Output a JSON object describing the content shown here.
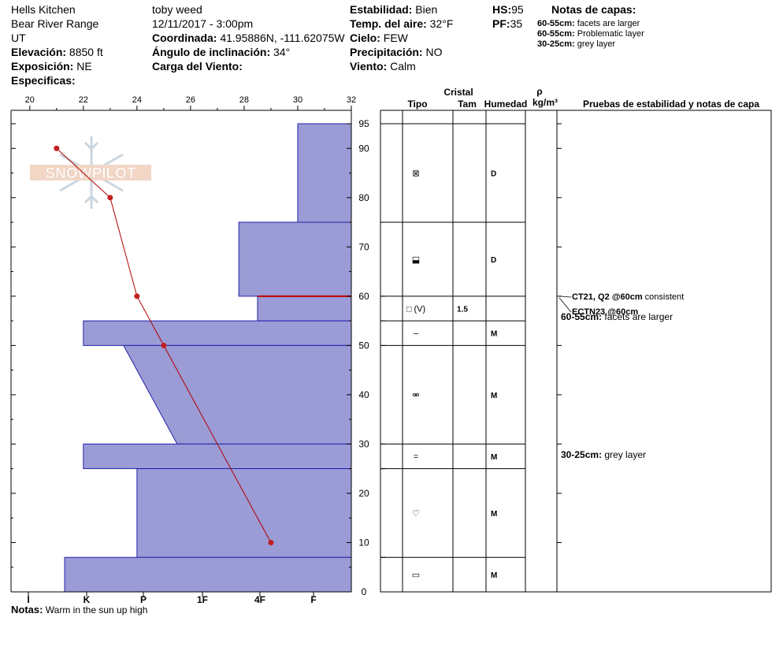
{
  "header": {
    "location": "Hells Kitchen",
    "range": "Bear River Range",
    "state": "UT",
    "elevation_label": "Elevación:",
    "elevation_value": "8850 ft",
    "aspect_label": "Exposición:",
    "aspect_value": "NE",
    "specifics_label": "Especificas:",
    "observer": "toby weed",
    "datetime": "12/11/2017 - 3:00pm",
    "coord_label": "Coordinada:",
    "coord_value": "41.95886N, -111.62075W",
    "incline_label": "Ángulo de inclinación:",
    "incline_value": "34°",
    "wind_load_label": "Carga del Viento:",
    "stability_label": "Estabilidad:",
    "stability_value": "Bien",
    "air_temp_label": "Temp. del aire:",
    "air_temp_value": "32°F",
    "sky_label": "Cielo:",
    "sky_value": "FEW",
    "precip_label": "Precipitación:",
    "precip_value": "NO",
    "wind_label": "Viento:",
    "wind_value": "Calm",
    "hs_label": "HS:",
    "hs_value": "95",
    "pf_label": "PF:",
    "pf_value": "35",
    "layer_notes_title": "Notas de capas:",
    "layer_notes": [
      {
        "range": "60-55cm:",
        "text": "facets are larger"
      },
      {
        "range": "60-55cm:",
        "text": "Problematic layer"
      },
      {
        "range": "30-25cm:",
        "text": "grey layer"
      }
    ]
  },
  "logo_text": "SNOWPILOT",
  "notes_label": "Notas:",
  "notes_value": "Warm in the sun up high",
  "table_headers": {
    "cristal": "Cristal",
    "tipo": "Tipo",
    "tam": "Tam",
    "humedad": "Humedad",
    "rho": "ρ",
    "density": "kg/m³",
    "tests": "Pruebas de estabilidad y notas de capa"
  },
  "chart_data": {
    "type": "snow-profile",
    "depth_ticks": [
      0,
      10,
      20,
      30,
      40,
      50,
      60,
      70,
      80,
      90,
      95
    ],
    "depth_range": [
      0,
      95
    ],
    "temp_ticks": [
      20,
      22,
      24,
      26,
      28,
      30,
      32
    ],
    "temp_range": [
      20,
      32
    ],
    "hardness_labels": [
      "I",
      "K",
      "P",
      "1F",
      "4F",
      "F"
    ],
    "temperature_profile": [
      {
        "depth": 90,
        "temp": 21
      },
      {
        "depth": 80,
        "temp": 23
      },
      {
        "depth": 60,
        "temp": 24
      },
      {
        "depth": 50,
        "temp": 25
      },
      {
        "depth": 10,
        "temp": 29
      }
    ],
    "hardness_layers": [
      {
        "top": 95,
        "bottom": 75,
        "temp_left": 30
      },
      {
        "top": 75,
        "bottom": 60,
        "temp_left": 27.8
      },
      {
        "top": 60,
        "bottom": 55,
        "temp_left": 28.5
      },
      {
        "top": 55,
        "bottom": 50,
        "temp_left": 22
      },
      {
        "top": 50,
        "bottom": 30,
        "temp_left_top": 23.5,
        "temp_left_bottom": 25.5
      },
      {
        "top": 30,
        "bottom": 25,
        "temp_left": 22
      },
      {
        "top": 25,
        "bottom": 7,
        "temp_left": 24
      },
      {
        "top": 7,
        "bottom": 0,
        "temp_left": 21.3
      }
    ],
    "red_line_depth": 60,
    "layers": [
      {
        "top": 95,
        "bottom": 75,
        "type_icon": "⊠",
        "size": "",
        "moisture": "D"
      },
      {
        "top": 75,
        "bottom": 60,
        "type_icon": "⬓",
        "size": "",
        "moisture": "D"
      },
      {
        "top": 60,
        "bottom": 55,
        "type_icon": "□ (V)",
        "size": "1.5",
        "moisture": ""
      },
      {
        "top": 55,
        "bottom": 50,
        "type_icon": "–",
        "size": "",
        "moisture": "M"
      },
      {
        "top": 50,
        "bottom": 30,
        "type_icon": "⚮",
        "size": "",
        "moisture": "M"
      },
      {
        "top": 30,
        "bottom": 25,
        "type_icon": "=",
        "size": "",
        "moisture": "M"
      },
      {
        "top": 25,
        "bottom": 7,
        "type_icon": "♡",
        "size": "",
        "moisture": "M"
      },
      {
        "top": 7,
        "bottom": 0,
        "type_icon": "▭",
        "size": "",
        "moisture": "M"
      }
    ],
    "stability_tests": [
      {
        "code": "CT21, Q2 @60cm",
        "text": "consistent"
      },
      {
        "code": "ECTN23 @60cm",
        "text": ""
      }
    ],
    "layer_annotations": [
      {
        "depth_label": "60-55cm:",
        "text": "facets are larger",
        "depth": 55
      },
      {
        "depth_label": "30-25cm:",
        "text": "grey layer",
        "depth": 27
      }
    ]
  }
}
